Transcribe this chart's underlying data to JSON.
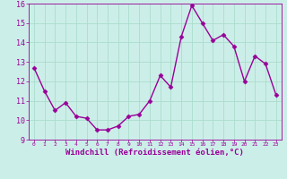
{
  "x": [
    0,
    1,
    2,
    3,
    4,
    5,
    6,
    7,
    8,
    9,
    10,
    11,
    12,
    13,
    14,
    15,
    16,
    17,
    18,
    19,
    20,
    21,
    22,
    23
  ],
  "y": [
    12.7,
    11.5,
    10.5,
    10.9,
    10.2,
    10.1,
    9.5,
    9.5,
    9.7,
    10.2,
    10.3,
    11.0,
    12.3,
    11.7,
    14.3,
    15.9,
    15.0,
    14.1,
    14.4,
    13.8,
    12.0,
    13.3,
    12.9,
    11.3
  ],
  "line_color": "#990099",
  "marker": "D",
  "marker_size": 2.5,
  "line_width": 1.0,
  "xlabel": "Windchill (Refroidissement éolien,°C)",
  "xlabel_fontsize": 6.5,
  "background_color": "#cceee8",
  "grid_color": "#aaddcc",
  "tick_label_color": "#990099",
  "axis_label_color": "#990099",
  "xlim": [
    -0.5,
    23.5
  ],
  "ylim": [
    9,
    16
  ],
  "yticks": [
    9,
    10,
    11,
    12,
    13,
    14,
    15,
    16
  ],
  "xticks": [
    0,
    1,
    2,
    3,
    4,
    5,
    6,
    7,
    8,
    9,
    10,
    11,
    12,
    13,
    14,
    15,
    16,
    17,
    18,
    19,
    20,
    21,
    22,
    23
  ]
}
